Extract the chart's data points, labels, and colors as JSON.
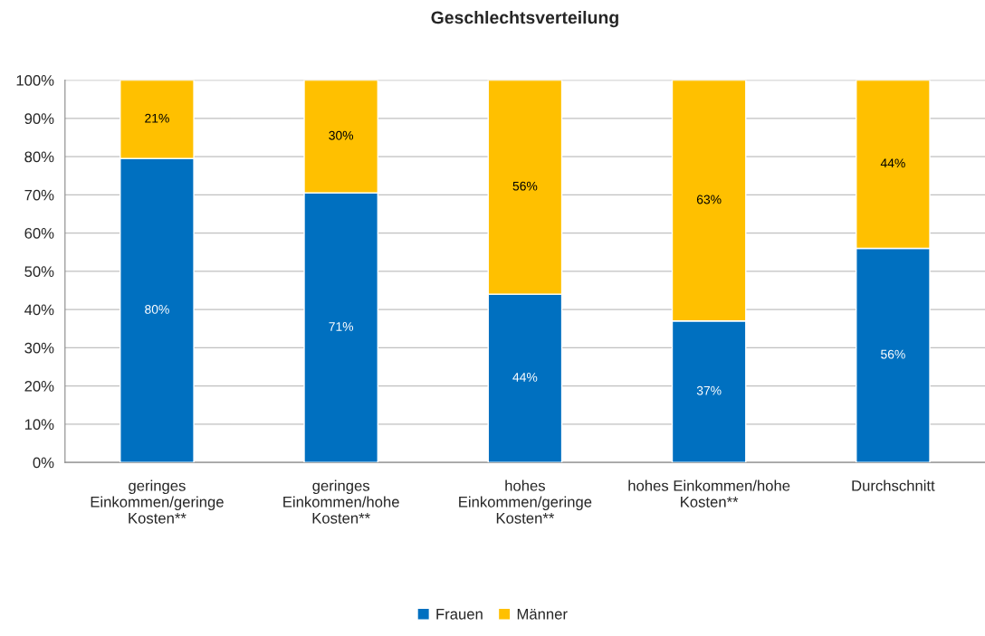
{
  "chart_data": {
    "type": "bar",
    "title": "Geschlechtsverteilung",
    "categories": [
      "geringes Einkommen/geringe Kosten**",
      "geringes Einkommen/hohe Kosten**",
      "hohes Einkommen/geringe Kosten**",
      "hohes Einkommen/hohe Kosten**",
      "Durchschnitt"
    ],
    "stacked": true,
    "series": [
      {
        "name": "Frauen",
        "color": "#0070c0",
        "values": [
          79.5,
          70.5,
          44,
          37,
          56
        ],
        "value_labels": [
          "80%",
          "71%",
          "44%",
          "37%",
          "56%"
        ]
      },
      {
        "name": "Männer",
        "color": "#ffc000",
        "values": [
          20.5,
          29.5,
          56,
          63,
          44
        ],
        "value_labels": [
          "21%",
          "30%",
          "56%",
          "63%",
          "44%"
        ]
      }
    ],
    "ylim": [
      0,
      100
    ],
    "yticks": [
      {
        "value": 0,
        "label": "0%"
      },
      {
        "value": 10,
        "label": "10%"
      },
      {
        "value": 20,
        "label": "20%"
      },
      {
        "value": 30,
        "label": "30%"
      },
      {
        "value": 40,
        "label": "40%"
      },
      {
        "value": 50,
        "label": "50%"
      },
      {
        "value": 60,
        "label": "60%"
      },
      {
        "value": 70,
        "label": "70%"
      },
      {
        "value": 80,
        "label": "80%"
      },
      {
        "value": 90,
        "label": "90%"
      },
      {
        "value": 100,
        "label": "100%"
      }
    ],
    "grid": "y",
    "legend": "bottom"
  }
}
